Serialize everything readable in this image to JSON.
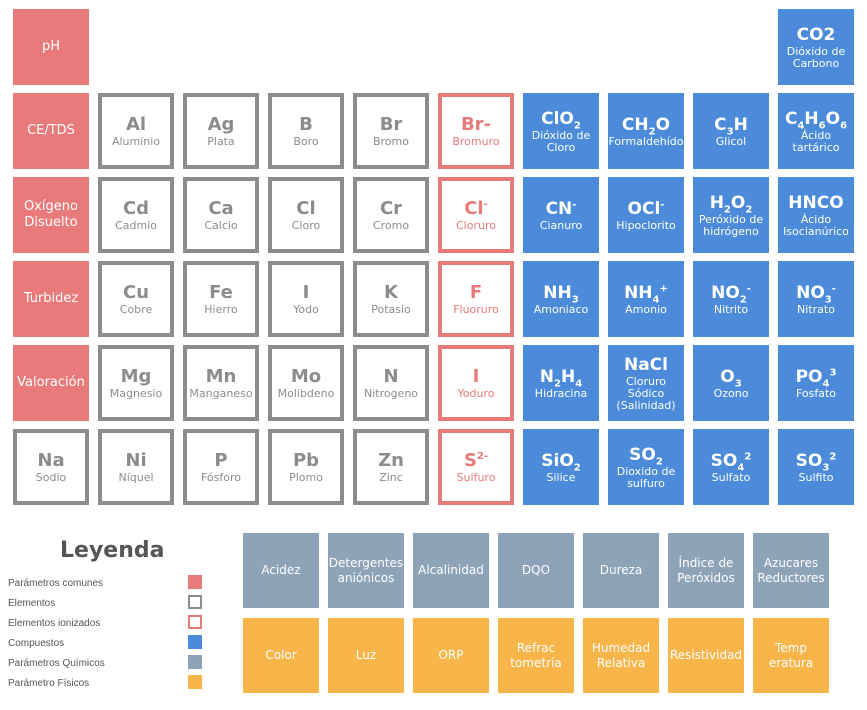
{
  "params": [
    "pH",
    "CE/TDS",
    "Oxígeno Disuelto",
    "Turbidez",
    "Valoración"
  ],
  "elements": [
    {
      "sym": "Al",
      "name": "Aluminio"
    },
    {
      "sym": "Ag",
      "name": "Plata"
    },
    {
      "sym": "B",
      "name": "Boro"
    },
    {
      "sym": "Br",
      "name": "Bromo"
    },
    {
      "sym": "Cd",
      "name": "Cadmio"
    },
    {
      "sym": "Ca",
      "name": "Calcio"
    },
    {
      "sym": "Cl",
      "name": "Cloro"
    },
    {
      "sym": "Cr",
      "name": "Cromo"
    },
    {
      "sym": "Cu",
      "name": "Cobre"
    },
    {
      "sym": "Fe",
      "name": "Hierro"
    },
    {
      "sym": "I",
      "name": "Yodo"
    },
    {
      "sym": "K",
      "name": "Potasio"
    },
    {
      "sym": "Mg",
      "name": "Magnesio"
    },
    {
      "sym": "Mn",
      "name": "Manganeso"
    },
    {
      "sym": "Mo",
      "name": "Molibdeno"
    },
    {
      "sym": "N",
      "name": "Nitrogeno"
    },
    {
      "sym": "Na",
      "name": "Sodio"
    },
    {
      "sym": "Ni",
      "name": "Níquel"
    },
    {
      "sym": "P",
      "name": "Fósforo"
    },
    {
      "sym": "Pb",
      "name": "Plomo"
    },
    {
      "sym": "Zn",
      "name": "Zinc"
    }
  ],
  "ions": [
    {
      "sym": "Br-",
      "sup": "",
      "name": "Bromuro"
    },
    {
      "sym": "Cl",
      "sup": "-",
      "name": "Cloruro"
    },
    {
      "sym": "F",
      "sup": "",
      "name": "Fluoruro"
    },
    {
      "sym": "I",
      "sup": "",
      "name": "Yoduro"
    },
    {
      "sym": "S",
      "sup": "2-",
      "name": "Sulfuro"
    }
  ],
  "compounds": [
    {
      "html": "CO2",
      "name": "Dióxido de Carbono"
    },
    {
      "html": "ClO<sub>2</sub>",
      "name": "Dióxido de Cloro"
    },
    {
      "html": "CH<sub>2</sub>O",
      "name": "Formaldehído"
    },
    {
      "html": "C<sub>3</sub>H",
      "name": "Glicol"
    },
    {
      "html": "C<sub>4</sub>H<sub>6</sub>O<sub>6</sub>",
      "name": "Ácido tartárico"
    },
    {
      "html": "CN<sup>-</sup>",
      "name": "Cianuro"
    },
    {
      "html": "OCl<sup>-</sup>",
      "name": "Hipoclorito"
    },
    {
      "html": "H<sub>2</sub>O<sub>2</sub>",
      "name": "Peróxido de hidrógeno"
    },
    {
      "html": "HNCO",
      "name": "Ácido Isocianúrico"
    },
    {
      "html": "NH<sub>3</sub>",
      "name": "Amoniaco"
    },
    {
      "html": "NH<sub>4</sub><sup>+</sup>",
      "name": "Amonio"
    },
    {
      "html": "NO<sub>2</sub><sup>-</sup>",
      "name": "Nitrito"
    },
    {
      "html": "NO<sub>3</sub><sup>-</sup>",
      "name": "Nitrato"
    },
    {
      "html": "N<sub>2</sub>H<sub>4</sub>",
      "name": "Hidracina"
    },
    {
      "html": "NaCl",
      "name": "Cloruro Sódico (Salinidad)"
    },
    {
      "html": "O<sub>3</sub>",
      "name": "Ozono"
    },
    {
      "html": "PO<sub>4</sub><sup>3</sup>",
      "name": "Fosfato"
    },
    {
      "html": "SiO<sub>2</sub>",
      "name": "Silice"
    },
    {
      "html": "SO<sub>2</sub>",
      "name": "Dioxido de sulfuro"
    },
    {
      "html": "SO<sub>4</sub><sup>2</sup>",
      "name": "Sulfato"
    },
    {
      "html": "SO<sub>3</sub><sup>2</sup>",
      "name": "Sulfito"
    }
  ],
  "chemical": [
    "Acidez",
    "Detergentes aniónicos",
    "Alcalinidad",
    "DQO",
    "Dureza",
    "Índice de Peróxidos",
    "Azucares Reductores"
  ],
  "physical": [
    "Color",
    "Luz",
    "ORP",
    "Refrac tometría",
    "Humedad Relativa",
    "Resistividad",
    "Temp eratura"
  ],
  "legend": {
    "title": "Leyenda",
    "items": [
      {
        "label": "Parámetros comunes",
        "color": "#e97a7a",
        "style": "fill"
      },
      {
        "label": "Elementos",
        "color": "#8c8c8c",
        "style": "border"
      },
      {
        "label": "Elementos ionizados",
        "color": "#e97a7a",
        "style": "border"
      },
      {
        "label": "Compuestos",
        "color": "#4b8bd9",
        "style": "fill"
      },
      {
        "label": "Parámetros Químicos",
        "color": "#8da3b8",
        "style": "fill"
      },
      {
        "label": "Parámetro Físicos",
        "color": "#f7b54a",
        "style": "fill"
      }
    ]
  }
}
